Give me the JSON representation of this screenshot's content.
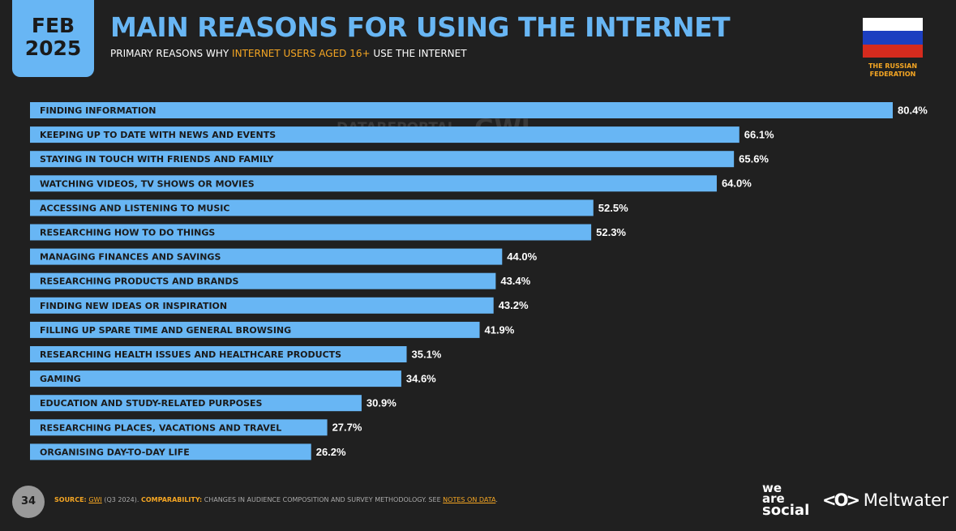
{
  "header": {
    "month": "FEB",
    "year": "2025",
    "country": "THE RUSSIAN FEDERATION",
    "watermark": [
      "DATAREPORTAL",
      "GWI."
    ]
  },
  "chart_data": {
    "type": "bar",
    "orientation": "horizontal",
    "title": "MAIN REASONS FOR USING THE INTERNET",
    "subtitle": [
      "PRIMARY REASONS WHY",
      "INTERNET USERS AGED 16+",
      "USE THE INTERNET"
    ],
    "categories": [
      "FINDING INFORMATION",
      "KEEPING UP TO DATE WITH NEWS AND EVENTS",
      "STAYING IN TOUCH WITH FRIENDS AND FAMILY",
      "WATCHING VIDEOS, TV SHOWS OR MOVIES",
      "ACCESSING AND LISTENING TO MUSIC",
      "RESEARCHING HOW TO DO THINGS",
      "MANAGING FINANCES AND SAVINGS",
      "RESEARCHING PRODUCTS AND BRANDS",
      "FINDING NEW IDEAS OR INSPIRATION",
      "FILLING UP SPARE TIME AND GENERAL BROWSING",
      "RESEARCHING HEALTH ISSUES AND HEALTHCARE PRODUCTS",
      "GAMING",
      "EDUCATION AND STUDY-RELATED PURPOSES",
      "RESEARCHING PLACES, VACATIONS AND TRAVEL",
      "ORGANISING DAY-TO-DAY LIFE"
    ],
    "values": [
      80.4,
      66.1,
      65.6,
      64.0,
      52.5,
      52.3,
      44.0,
      43.4,
      43.2,
      41.9,
      35.1,
      34.6,
      30.9,
      27.7,
      26.2
    ],
    "value_labels": [
      "80.4%",
      "66.1%",
      "65.6%",
      "64.0%",
      "52.5%",
      "52.3%",
      "44.0%",
      "43.4%",
      "43.2%",
      "41.9%",
      "35.1%",
      "34.6%",
      "30.9%",
      "27.7%",
      "26.2%"
    ],
    "color": "#68b6f4"
  },
  "footer": {
    "page": "34",
    "source_label": "SOURCE:",
    "source": "GWI",
    "source_detail": "(Q3 2024).",
    "comparability_label": "COMPARABILITY:",
    "comparability": "CHANGES IN AUDIENCE COMPOSITION AND SURVEY METHODOLOGY. SEE",
    "notes_link": "NOTES ON DATA",
    "end": ".",
    "logo_1": [
      "we",
      "are",
      "social"
    ],
    "logo_2": "Meltwater"
  }
}
